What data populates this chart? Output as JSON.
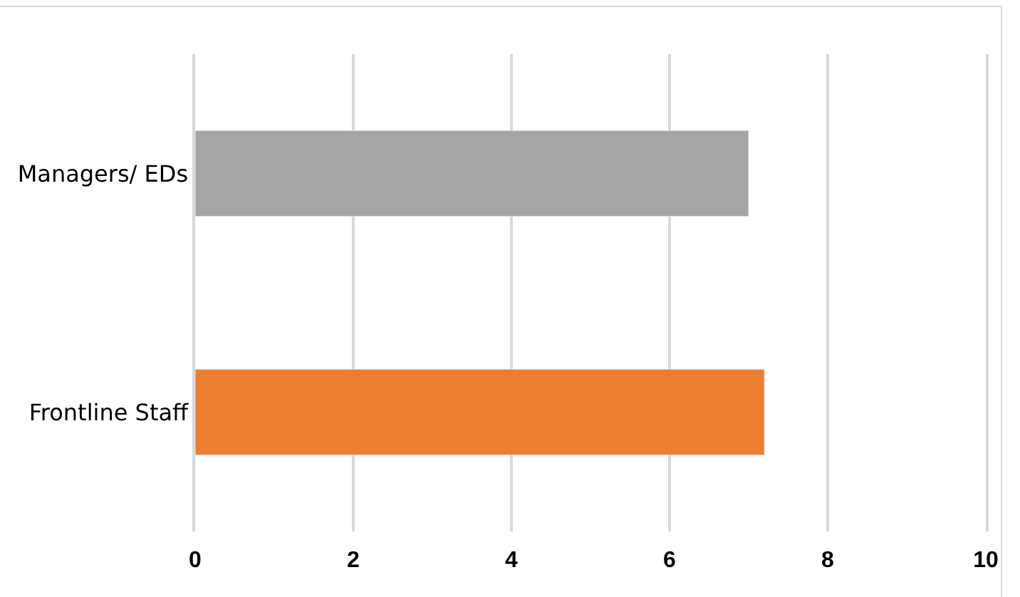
{
  "chart_data": {
    "type": "bar",
    "orientation": "horizontal",
    "categories": [
      "Managers/ EDs",
      "Frontline Staff"
    ],
    "values": [
      7.0,
      7.2
    ],
    "colors": [
      "#a5a5a5",
      "#ed7d31"
    ],
    "xlim": [
      0,
      10
    ],
    "xticks": [
      0,
      2,
      4,
      6,
      8,
      10
    ],
    "grid": "x"
  }
}
